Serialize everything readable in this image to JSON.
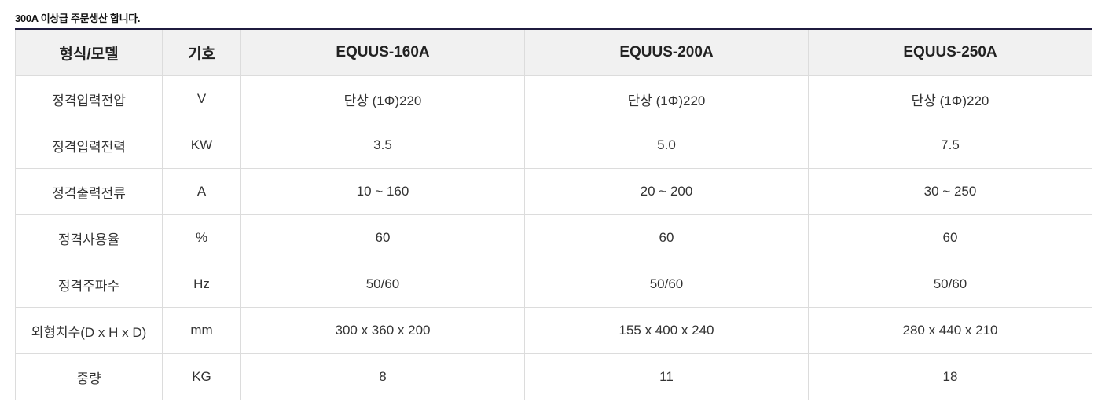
{
  "note": "300A 이상급 주문생산 합니다.",
  "table": {
    "headers": [
      "형식/모델",
      "기호",
      "EQUUS-160A",
      "EQUUS-200A",
      "EQUUS-250A"
    ],
    "rows": [
      [
        "정격입력전압",
        "V",
        "단상 (1Φ)220",
        "단상 (1Φ)220",
        "단상 (1Φ)220"
      ],
      [
        "정격입력전력",
        "KW",
        "3.5",
        "5.0",
        "7.5"
      ],
      [
        "정격출력전류",
        "A",
        "10 ~ 160",
        "20 ~ 200",
        "30 ~ 250"
      ],
      [
        "정격사용율",
        "%",
        "60",
        "60",
        "60"
      ],
      [
        "정격주파수",
        "Hz",
        "50/60",
        "50/60",
        "50/60"
      ],
      [
        "외형치수(D x H x D)",
        "mm",
        "300 x 360 x 200",
        "155 x 400 x 240",
        "280 x 440 x 210"
      ],
      [
        "중량",
        "KG",
        "8",
        "11",
        "18"
      ]
    ]
  },
  "colors": {
    "header_bg": "#f1f1f1",
    "top_border": "#1f1b3f",
    "cell_border": "#dcdcdc"
  }
}
